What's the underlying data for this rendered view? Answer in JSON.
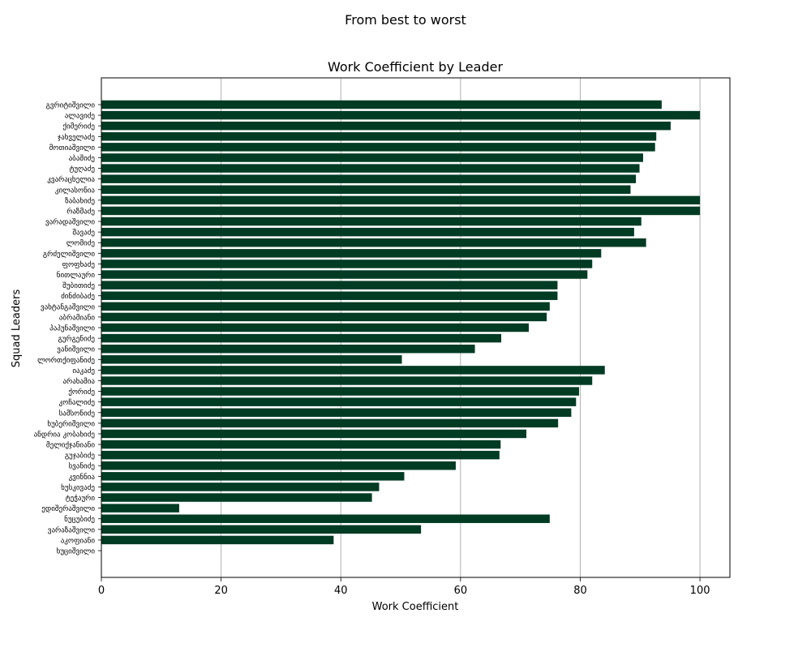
{
  "chart_data": {
    "type": "bar",
    "orientation": "horizontal",
    "suptitle": "From best to worst",
    "title": "Work Coefficient by Leader",
    "xlabel": "Work Coefficient",
    "ylabel": "Squad Leaders",
    "xlim": [
      0,
      105
    ],
    "xticks": [
      0,
      20,
      40,
      60,
      80,
      100
    ],
    "grid": "x",
    "bar_color": "#003b24",
    "categories": [
      "გვრიტიშვილი",
      "ალავიძე",
      "ქიმერიძე",
      "ჯახველაძე",
      "მოთიაშვილი",
      "აბაშიძე",
      "ტუღაძე",
      "კვარაცხელია",
      "კილასონია",
      "ზაბახიძე",
      "რაზმაძე",
      "ვარადაშვილი",
      "შავაძე",
      "ლომიძე",
      "გრძელიშვილი",
      "ფოფხაძე",
      "ნითლაური",
      "შუბითიძე",
      "ძინძიბაძე",
      "ვახტანგაშვილი",
      "აბრამიანი",
      "პაპუნაშვილი",
      "გურგენიძე",
      "ვანიშვილი",
      "ლორთქიფანიძე",
      "იაკაძე",
      "არახამია",
      "ქორიძე",
      "კოჩალიძე",
      "სამსონიძე",
      "ხუბერიშვილი",
      "ანდრია კობახიძე",
      "მელიქჯანიანი",
      "გუჯაბიძე",
      "სვანიძე",
      "კვინნია",
      "ხუსკივაძე",
      "ტეჭაური",
      "ედიშერაშვილი",
      "ნუცუბიძე",
      "ვარაზაშვილი",
      "აკოფიანი",
      "ხუციშვილი"
    ],
    "values": [
      93.6,
      100.0,
      95.1,
      92.7,
      92.5,
      90.5,
      89.9,
      89.3,
      88.4,
      100.0,
      100.0,
      90.2,
      89.0,
      91.0,
      83.5,
      82.0,
      81.2,
      76.2,
      76.2,
      74.9,
      74.4,
      71.4,
      66.8,
      62.4,
      50.2,
      84.1,
      82.0,
      79.8,
      79.3,
      78.5,
      76.3,
      71.0,
      66.7,
      66.5,
      59.2,
      50.6,
      46.4,
      45.2,
      13.0,
      74.9,
      53.4,
      38.8,
      0
    ]
  }
}
